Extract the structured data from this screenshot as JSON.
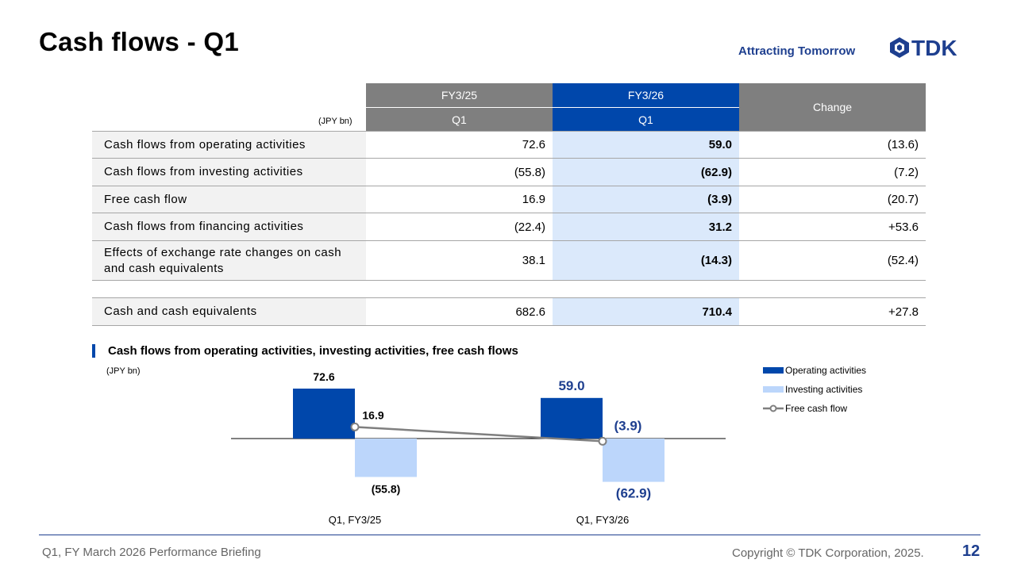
{
  "header": {
    "title": "Cash flows - Q1",
    "tagline": "Attracting Tomorrow",
    "logo_text": "TDK"
  },
  "table": {
    "unit": "(JPY bn)",
    "col_fy25": "FY3/25",
    "col_fy26": "FY3/26",
    "col_change": "Change",
    "sub_fy25": "Q1",
    "sub_fy26": "Q1",
    "rows": [
      {
        "label": "Cash flows from operating activities",
        "fy25": "72.6",
        "fy26": "59.0",
        "change": "(13.6)"
      },
      {
        "label": "Cash flows from investing activities",
        "fy25": "(55.8)",
        "fy26": "(62.9)",
        "change": "(7.2)"
      },
      {
        "label": "Free cash flow",
        "fy25": "16.9",
        "fy26": "(3.9)",
        "change": "(20.7)"
      },
      {
        "label": "Cash flows from financing activities",
        "fy25": "(22.4)",
        "fy26": "31.2",
        "change": "+53.6"
      },
      {
        "label": "Effects of exchange rate changes on cash and cash equivalents",
        "fy25": "38.1",
        "fy26": "(14.3)",
        "change": "(52.4)"
      }
    ],
    "total": {
      "label": "Cash and cash equivalents",
      "fy25": "682.6",
      "fy26": "710.4",
      "change": "+27.8"
    }
  },
  "chart_section": {
    "title": "Cash flows from operating activities, investing activities, free cash flows",
    "unit": "(JPY bn)"
  },
  "chart_data": {
    "type": "bar",
    "categories": [
      "Q1, FY3/25",
      "Q1, FY3/26"
    ],
    "series": [
      {
        "name": "Operating activities",
        "kind": "bar",
        "values": [
          72.6,
          59.0
        ],
        "labels": [
          "72.6",
          "59.0"
        ],
        "color": "#0047ab"
      },
      {
        "name": "Investing activities",
        "kind": "bar",
        "values": [
          -55.8,
          -62.9
        ],
        "labels": [
          "(55.8)",
          "(62.9)"
        ],
        "color": "#bcd6fb"
      },
      {
        "name": "Free cash flow",
        "kind": "line",
        "values": [
          16.9,
          -3.9
        ],
        "labels": [
          "16.9",
          "(3.9)"
        ],
        "color": "#7f7f7f"
      }
    ],
    "label_colors": {
      "FY3/25": "#000000",
      "FY3/26": "#1e3f8f"
    },
    "title": "",
    "xlabel": "",
    "ylabel": "",
    "legend": "right"
  },
  "footer": {
    "left": "Q1, FY March 2026 Performance Briefing",
    "right": "Copyright  © TDK Corporation, 2025.",
    "page": "12"
  },
  "colors": {
    "accent": "#0047ab",
    "header_grey": "#7f7f7f",
    "highlight": "#dbe9fb",
    "brand_text": "#1e3f8f"
  }
}
